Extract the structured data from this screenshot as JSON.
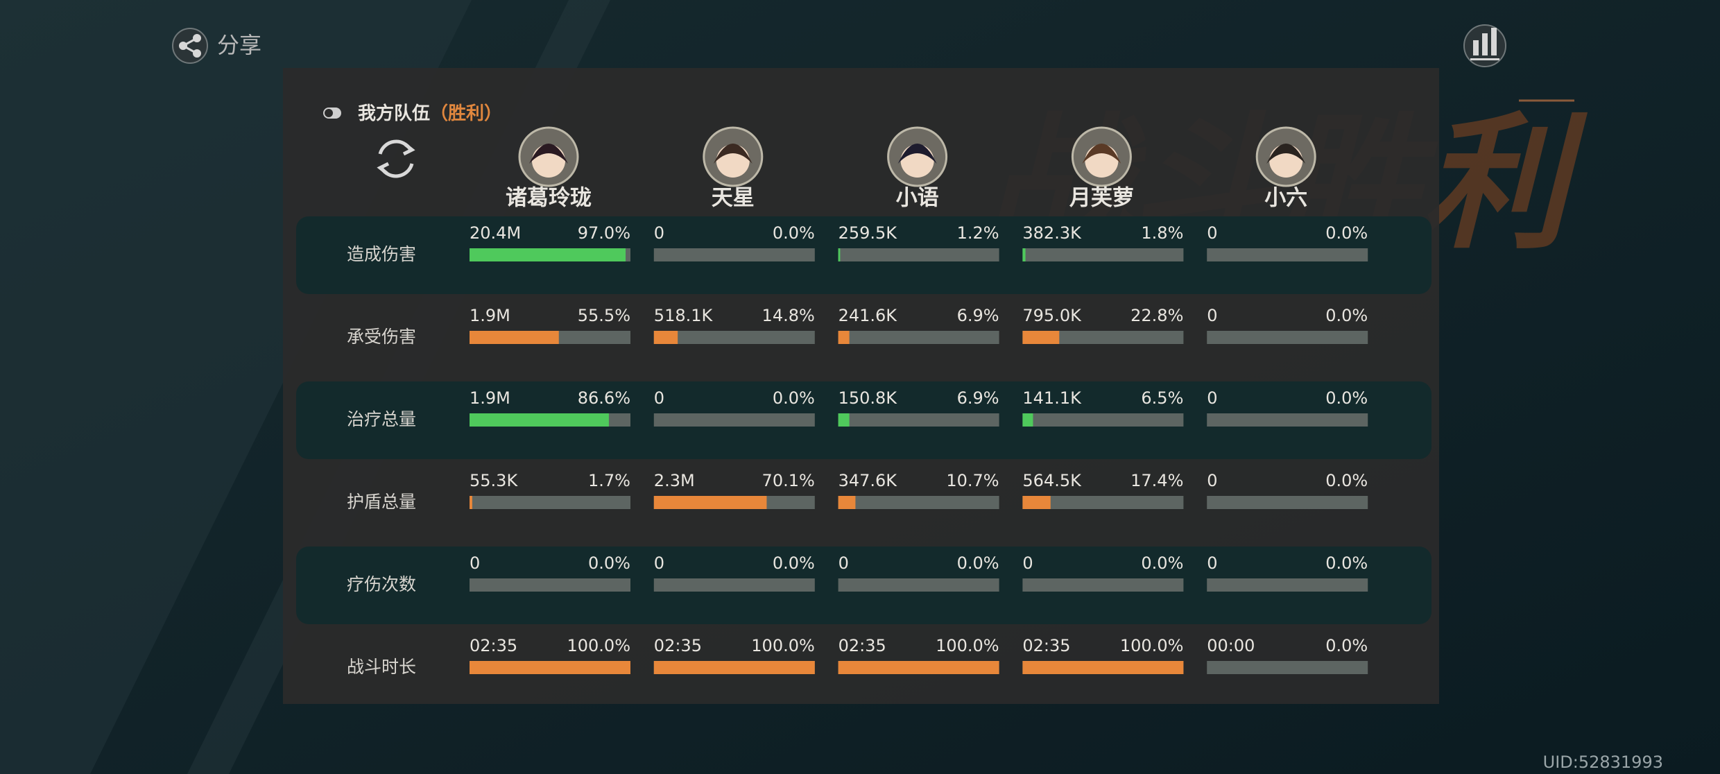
{
  "top_bar": {
    "share": "分享",
    "uid": "UID:52831993"
  },
  "background_title": "战斗胜利",
  "panel": {
    "team": "我方队伍",
    "result": "（胜利）",
    "players": [
      "诸葛玲珑",
      "天星",
      "小语",
      "月芙萝",
      "小六"
    ],
    "rows": [
      {
        "label": "造成伤害",
        "color": "#4fc95c",
        "cells": [
          {
            "amount": "20.4M",
            "percent": 97.0,
            "percent_label": "97.0%"
          },
          {
            "amount": "0",
            "percent": 0,
            "percent_label": "0.0%"
          },
          {
            "amount": "259.5K",
            "percent": 1.2,
            "percent_label": "1.2%"
          },
          {
            "amount": "382.3K",
            "percent": 1.8,
            "percent_label": "1.8%"
          },
          {
            "amount": "0",
            "percent": 0,
            "percent_label": "0.0%"
          }
        ]
      },
      {
        "label": "承受伤害",
        "color": "#e8873a",
        "cells": [
          {
            "amount": "1.9M",
            "percent": 55.5,
            "percent_label": "55.5%"
          },
          {
            "amount": "518.1K",
            "percent": 14.8,
            "percent_label": "14.8%"
          },
          {
            "amount": "241.6K",
            "percent": 6.9,
            "percent_label": "6.9%"
          },
          {
            "amount": "795.0K",
            "percent": 22.8,
            "percent_label": "22.8%"
          },
          {
            "amount": "0",
            "percent": 0,
            "percent_label": "0.0%"
          }
        ]
      },
      {
        "label": "治疗总量",
        "color": "#4fc95c",
        "cells": [
          {
            "amount": "1.9M",
            "percent": 86.6,
            "percent_label": "86.6%"
          },
          {
            "amount": "0",
            "percent": 0,
            "percent_label": "0.0%"
          },
          {
            "amount": "150.8K",
            "percent": 6.9,
            "percent_label": "6.9%"
          },
          {
            "amount": "141.1K",
            "percent": 6.5,
            "percent_label": "6.5%"
          },
          {
            "amount": "0",
            "percent": 0,
            "percent_label": "0.0%"
          }
        ]
      },
      {
        "label": "护盾总量",
        "color": "#e8873a",
        "cells": [
          {
            "amount": "55.3K",
            "percent": 1.7,
            "percent_label": "1.7%"
          },
          {
            "amount": "2.3M",
            "percent": 70.1,
            "percent_label": "70.1%"
          },
          {
            "amount": "347.6K",
            "percent": 10.7,
            "percent_label": "10.7%"
          },
          {
            "amount": "564.5K",
            "percent": 17.4,
            "percent_label": "17.4%"
          },
          {
            "amount": "0",
            "percent": 0,
            "percent_label": "0.0%"
          }
        ]
      },
      {
        "label": "疗伤次数",
        "color": "#e8873a",
        "cells": [
          {
            "amount": "0",
            "percent": 0,
            "percent_label": "0.0%"
          },
          {
            "amount": "0",
            "percent": 0,
            "percent_label": "0.0%"
          },
          {
            "amount": "0",
            "percent": 0,
            "percent_label": "0.0%"
          },
          {
            "amount": "0",
            "percent": 0,
            "percent_label": "0.0%"
          },
          {
            "amount": "0",
            "percent": 0,
            "percent_label": "0.0%"
          }
        ]
      },
      {
        "label": "战斗时长",
        "color": "#e8873a",
        "cells": [
          {
            "amount": "02:35",
            "percent": 100.0,
            "percent_label": "100.0%"
          },
          {
            "amount": "02:35",
            "percent": 100.0,
            "percent_label": "100.0%"
          },
          {
            "amount": "02:35",
            "percent": 100.0,
            "percent_label": "100.0%"
          },
          {
            "amount": "02:35",
            "percent": 100.0,
            "percent_label": "100.0%"
          },
          {
            "amount": "00:00",
            "percent": 0,
            "percent_label": "0.0%"
          }
        ]
      }
    ]
  }
}
